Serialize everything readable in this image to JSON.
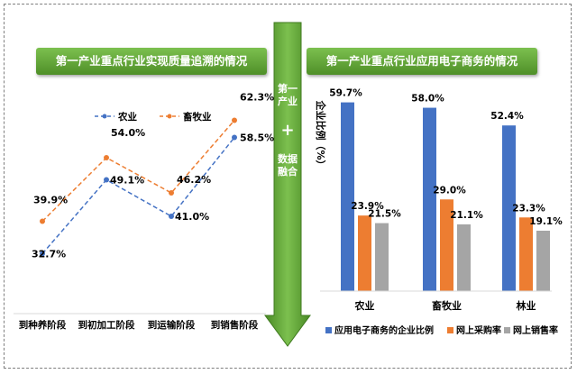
{
  "banners": {
    "left": "第一产业重点行业实现质量追溯的情况",
    "right": "第一产业重点行业应用电子商务的情况"
  },
  "center": {
    "top": "第一产业",
    "plus": "+",
    "bottom": "数据融合"
  },
  "chart_data": [
    {
      "type": "line",
      "categories": [
        "到种养阶段",
        "到初加工阶段",
        "到运输阶段",
        "到销售阶段"
      ],
      "series": [
        {
          "name": "农业",
          "values": [
            32.7,
            49.1,
            41.0,
            58.5
          ],
          "labels": [
            "32.7%",
            "49.1%",
            "41.0%",
            "58.5%"
          ],
          "color": "#4472c4"
        },
        {
          "name": "畜牧业",
          "values": [
            39.9,
            54.0,
            46.2,
            62.3
          ],
          "labels": [
            "39.9%",
            "54.0%",
            "46.2%",
            "62.3%"
          ],
          "color": "#ed7d31"
        }
      ],
      "legend_position": "top-center",
      "grid": false,
      "ylim": [
        20,
        70
      ]
    },
    {
      "type": "bar",
      "ylabel": "企业比例",
      "yunit": "（%）",
      "categories": [
        "农业",
        "畜牧业",
        "林业"
      ],
      "series": [
        {
          "name": "应用电子商务的企业比例",
          "values": [
            59.7,
            58.0,
            52.4
          ],
          "labels": [
            "59.7%",
            "58.0%",
            "52.4%"
          ],
          "color": "#4472c4"
        },
        {
          "name": "网上采购率",
          "values": [
            23.9,
            29.0,
            23.3
          ],
          "labels": [
            "23.9%",
            "29.0%",
            "23.3%"
          ],
          "color": "#ed7d31"
        },
        {
          "name": "网上销售率",
          "values": [
            21.5,
            21.1,
            19.1
          ],
          "labels": [
            "21.5%",
            "21.1%",
            "19.1%"
          ],
          "color": "#a5a5a5"
        }
      ],
      "legend_position": "bottom",
      "grid": false,
      "ylim": [
        0,
        65
      ]
    }
  ]
}
